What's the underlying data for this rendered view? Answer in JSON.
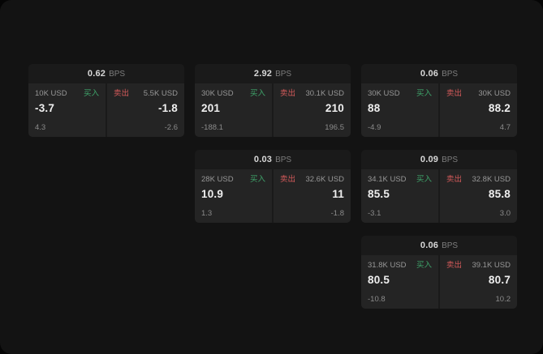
{
  "cards": [
    {
      "bps": "0.62",
      "unit": "BPS",
      "buy": {
        "size": "10K USD",
        "label": "买入",
        "price": "-3.7",
        "delta": "4.3"
      },
      "sell": {
        "label": "卖出",
        "size": "5.5K USD",
        "price": "-1.8",
        "delta": "-2.6"
      }
    },
    {
      "bps": "2.92",
      "unit": "BPS",
      "buy": {
        "size": "30K USD",
        "label": "买入",
        "price": "201",
        "delta": "-188.1"
      },
      "sell": {
        "label": "卖出",
        "size": "30.1K USD",
        "price": "210",
        "delta": "196.5"
      }
    },
    {
      "bps": "0.06",
      "unit": "BPS",
      "buy": {
        "size": "30K USD",
        "label": "买入",
        "price": "88",
        "delta": "-4.9"
      },
      "sell": {
        "label": "卖出",
        "size": "30K USD",
        "price": "88.2",
        "delta": "4.7"
      }
    },
    {
      "bps": "0.03",
      "unit": "BPS",
      "buy": {
        "size": "28K USD",
        "label": "买入",
        "price": "10.9",
        "delta": "1.3"
      },
      "sell": {
        "label": "卖出",
        "size": "32.6K USD",
        "price": "11",
        "delta": "-1.8"
      }
    },
    {
      "bps": "0.09",
      "unit": "BPS",
      "buy": {
        "size": "34.1K USD",
        "label": "买入",
        "price": "85.5",
        "delta": "-3.1"
      },
      "sell": {
        "label": "卖出",
        "size": "32.8K USD",
        "price": "85.8",
        "delta": "3.0"
      }
    },
    {
      "bps": "0.06",
      "unit": "BPS",
      "buy": {
        "size": "31.8K USD",
        "label": "买入",
        "price": "80.5",
        "delta": "-10.8"
      },
      "sell": {
        "label": "卖出",
        "size": "39.1K USD",
        "price": "80.7",
        "delta": "10.2"
      }
    }
  ],
  "colors": {
    "buy_accent": "#3fa56b",
    "sell_accent": "#d45a5a",
    "card_bg": "#1a1a1a",
    "panel_bg": "#242424",
    "screen_bg": "#131313"
  }
}
